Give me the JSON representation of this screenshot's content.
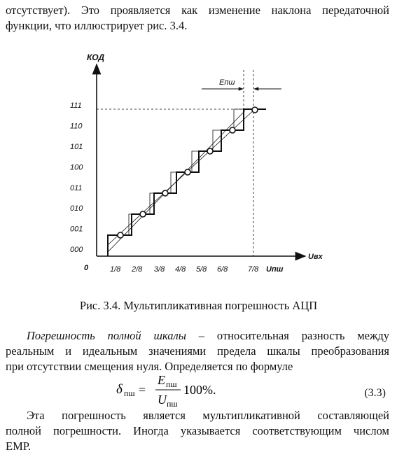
{
  "intro": {
    "line1": "отсутствует). Это проявляется как изменение наклона передаточной",
    "line2": "функции, что иллюстрирует рис. 3.4."
  },
  "figure": {
    "y_axis_label": "КОД",
    "x_axis_label": "Uвх",
    "origin_label": "0",
    "error_label": "Eпш",
    "y_ticks": [
      "000",
      "001",
      "010",
      "011",
      "100",
      "101",
      "110",
      "111"
    ],
    "x_ticks": [
      "1/8",
      "2/8",
      "3/8",
      "4/8",
      "5/8",
      "6/8",
      "7/8",
      "Uпш"
    ]
  },
  "caption": "Рис. 3.4. Мультипликативная погрешность АЦП",
  "definition": {
    "term": "Погрешность полной шкалы",
    "dash": "–",
    "line1_rest": "относительная разность между",
    "line2": "реальным и идеальным значениями предела шкалы преобразования",
    "line3": "при отсутствии смещения нуля. Определяется по формуле"
  },
  "formula": {
    "lhs_symbol": "δ",
    "lhs_sub": "пш",
    "num_symbol": "E",
    "num_sub": "пш",
    "den_symbol": "U",
    "den_sub": "пш",
    "tail": "100%.",
    "number": "(3.3)"
  },
  "closing": {
    "line1": "Эта погрешность является мультипликативной составляющей",
    "line2": "полной погрешности. Иногда указывается соответствующим числом",
    "line3": "ЕМР."
  }
}
